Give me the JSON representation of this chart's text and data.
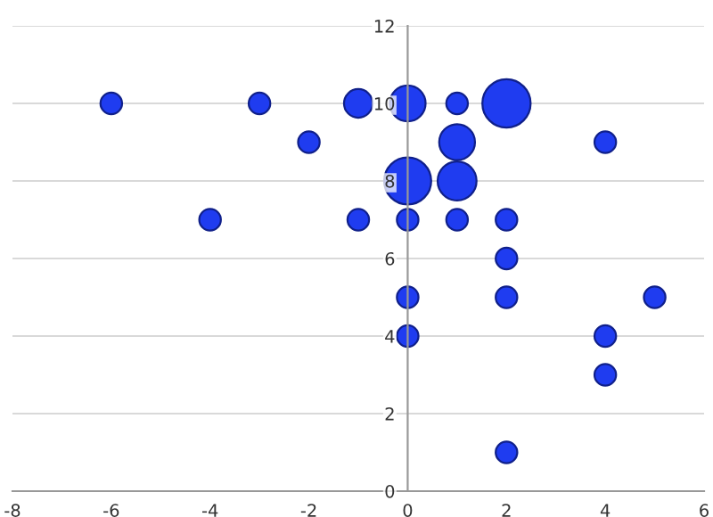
{
  "chart_data": {
    "type": "bubble",
    "x": [
      -6,
      -3,
      -1,
      0,
      1,
      2,
      -2,
      1,
      4,
      -4,
      -1,
      0,
      1,
      0,
      1,
      2,
      2,
      0,
      2,
      5,
      0,
      4,
      4,
      2
    ],
    "values": [
      10,
      10,
      10,
      10,
      10,
      10,
      9,
      9,
      9,
      7,
      7,
      8,
      8,
      7,
      7,
      7,
      6,
      5,
      5,
      5,
      4,
      4,
      3,
      1
    ],
    "sizes": [
      0.2,
      0.2,
      0.35,
      0.55,
      0.2,
      1,
      0.2,
      0.55,
      0.2,
      0.2,
      0.2,
      0.95,
      0.65,
      0.2,
      0.2,
      0.2,
      0.2,
      0.2,
      0.2,
      0.2,
      0.2,
      0.2,
      0.2,
      0.2
    ],
    "color": "#1f3cf0",
    "xlim": [
      -8,
      6
    ],
    "xticks": [
      -8,
      -6,
      -4,
      -2,
      0,
      2,
      4,
      6
    ],
    "ylim": [
      0,
      12
    ],
    "yticks": [
      0,
      2,
      4,
      6,
      8,
      10,
      12
    ],
    "grid": "y"
  }
}
